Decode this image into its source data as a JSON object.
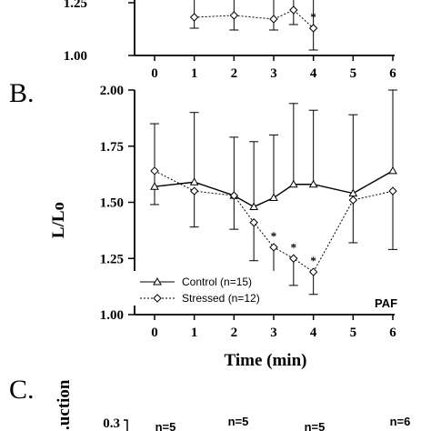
{
  "chart_data": [
    {
      "panel": "",
      "type": "line",
      "x_ticks": [
        "0",
        "1",
        "2",
        "3",
        "4",
        "5",
        "6"
      ],
      "y_ticks": [
        "1.00",
        "1.25"
      ],
      "x_values": [
        0,
        1,
        2,
        3,
        3.5,
        4,
        6
      ],
      "ylim_visible": [
        1.0,
        1.33
      ],
      "series": [
        {
          "values": [
            null,
            1.21,
            1.22,
            1.2,
            1.25,
            1.15,
            null
          ],
          "errors": [
            null,
            0.06,
            0.08,
            0.06,
            0.08,
            0.12,
            null
          ]
        }
      ],
      "note": "partially cropped at top"
    },
    {
      "panel": "B.",
      "type": "line",
      "ylabel": "L/Lo",
      "xlabel": "Time (min)",
      "xlim": [
        0,
        6
      ],
      "ylim": [
        1.0,
        2.0
      ],
      "x_ticks": [
        "0",
        "1",
        "2",
        "3",
        "4",
        "5",
        "6"
      ],
      "y_ticks": [
        "1.00",
        "1.25",
        "1.50",
        "1.75",
        "2.00"
      ],
      "x": [
        0,
        1,
        2,
        2.5,
        3,
        3.5,
        4,
        5,
        6
      ],
      "series": [
        {
          "name": "Control (n=15)",
          "marker": "triangle",
          "line": "solid",
          "values": [
            1.57,
            1.59,
            1.53,
            1.48,
            1.52,
            1.58,
            1.58,
            1.54,
            1.64
          ],
          "errors": [
            0.28,
            0.31,
            0.26,
            0.29,
            0.28,
            0.36,
            0.33,
            0.35,
            0.42
          ]
        },
        {
          "name": "Stressed (n=12)",
          "marker": "diamond",
          "line": "dotted",
          "values": [
            1.64,
            1.55,
            1.53,
            1.41,
            1.3,
            1.25,
            1.19,
            1.51,
            1.55
          ],
          "errors": [
            0.15,
            0.16,
            0.15,
            0.17,
            0.13,
            0.12,
            0.1,
            0.19,
            0.26
          ]
        }
      ],
      "annotations": [
        "*",
        "*",
        "*"
      ],
      "annotation_x": [
        3,
        3.5,
        4
      ],
      "corner_label": "PAF",
      "legend_position": "bottom-left"
    },
    {
      "panel": "C.",
      "type": "bar",
      "ylabel": "...uction",
      "y_ticks": [
        "0.3"
      ],
      "n_labels": [
        "n=5",
        "n=5",
        "n=5",
        "n=6"
      ],
      "note": "cropped at bottom"
    }
  ]
}
